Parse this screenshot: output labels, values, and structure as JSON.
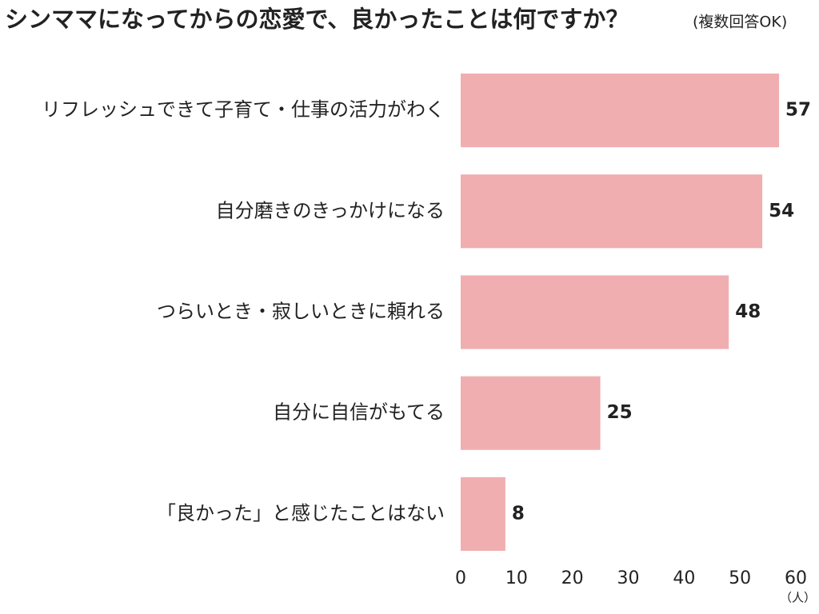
{
  "chart_data": {
    "type": "bar",
    "orientation": "horizontal",
    "title": "シンママになってからの恋愛で、良かったことは何ですか？",
    "subtitle": "(複数回答OK)",
    "x_label": "（人）",
    "categories": [
      "リフレッシュできて子育て・仕事の活力がわく",
      "自分磨きのきっかけになる",
      "つらいとき・寂しいときに頼れる",
      "自分に自信がもてる",
      "「良かった」と感じたことはない"
    ],
    "values": [
      57,
      54,
      48,
      25,
      8
    ],
    "color": "#f0aeb0",
    "xlim": [
      0,
      60
    ],
    "xticks": [
      0,
      10,
      20,
      30,
      40,
      50,
      60
    ],
    "grid": false
  }
}
